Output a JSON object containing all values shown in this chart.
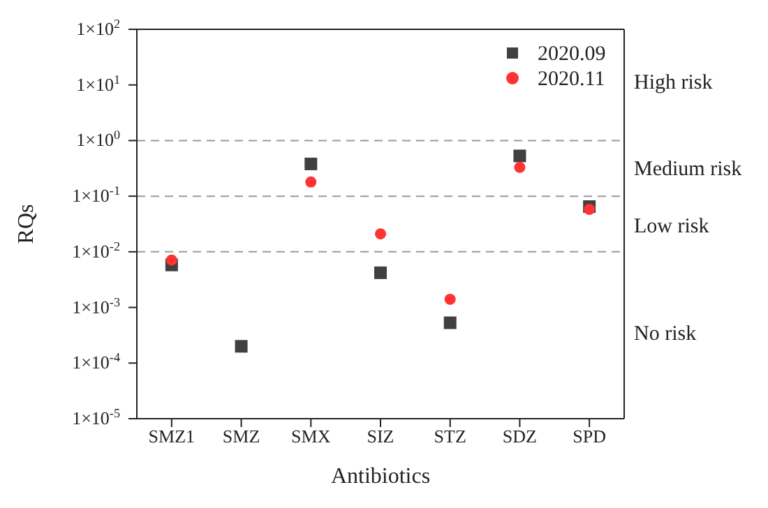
{
  "chart_data": {
    "type": "scatter",
    "xlabel": "Antibiotics",
    "ylabel": "RQs",
    "categories": [
      "SMZ1",
      "SMZ",
      "SMX",
      "SIZ",
      "STZ",
      "SDZ",
      "SPD"
    ],
    "series": [
      {
        "name": "2020.09",
        "color": "#404040",
        "marker": "square",
        "values": [
          0.0058,
          0.0002,
          0.38,
          0.0042,
          0.00053,
          0.53,
          0.065
        ]
      },
      {
        "name": "2020.11",
        "color": "#ff3333",
        "marker": "circle",
        "values": [
          0.0071,
          null,
          0.18,
          0.021,
          0.0014,
          0.33,
          0.058
        ]
      }
    ],
    "log": true,
    "ylim": [
      1e-05,
      100
    ],
    "yticks": [
      {
        "value": 1e-05,
        "label": "1×10$^{-5}$"
      },
      {
        "value": 0.0001,
        "label": "1×10$^{-4}$"
      },
      {
        "value": 0.001,
        "label": "1×10$^{-3}$"
      },
      {
        "value": 0.01,
        "label": "1×10$^{-2}$"
      },
      {
        "value": 0.1,
        "label": "1×10$^{-1}$"
      },
      {
        "value": 1,
        "label": "1×10$^{0}$"
      },
      {
        "value": 10,
        "label": "1×10$^{1}$"
      },
      {
        "value": 100,
        "label": "1×10$^{2}$"
      }
    ],
    "ref_lines": [
      {
        "axis": "y",
        "value": 1,
        "color": "#999999",
        "line_style": "dashed"
      },
      {
        "axis": "y",
        "value": 0.1,
        "color": "#999999",
        "line_style": "dashed"
      },
      {
        "axis": "y",
        "value": 0.01,
        "color": "#999999",
        "line_style": "dashed"
      }
    ],
    "annotations": [
      "High risk",
      "Medium risk",
      "Low risk",
      "No risk"
    ],
    "legend": "top right",
    "grid": false
  }
}
